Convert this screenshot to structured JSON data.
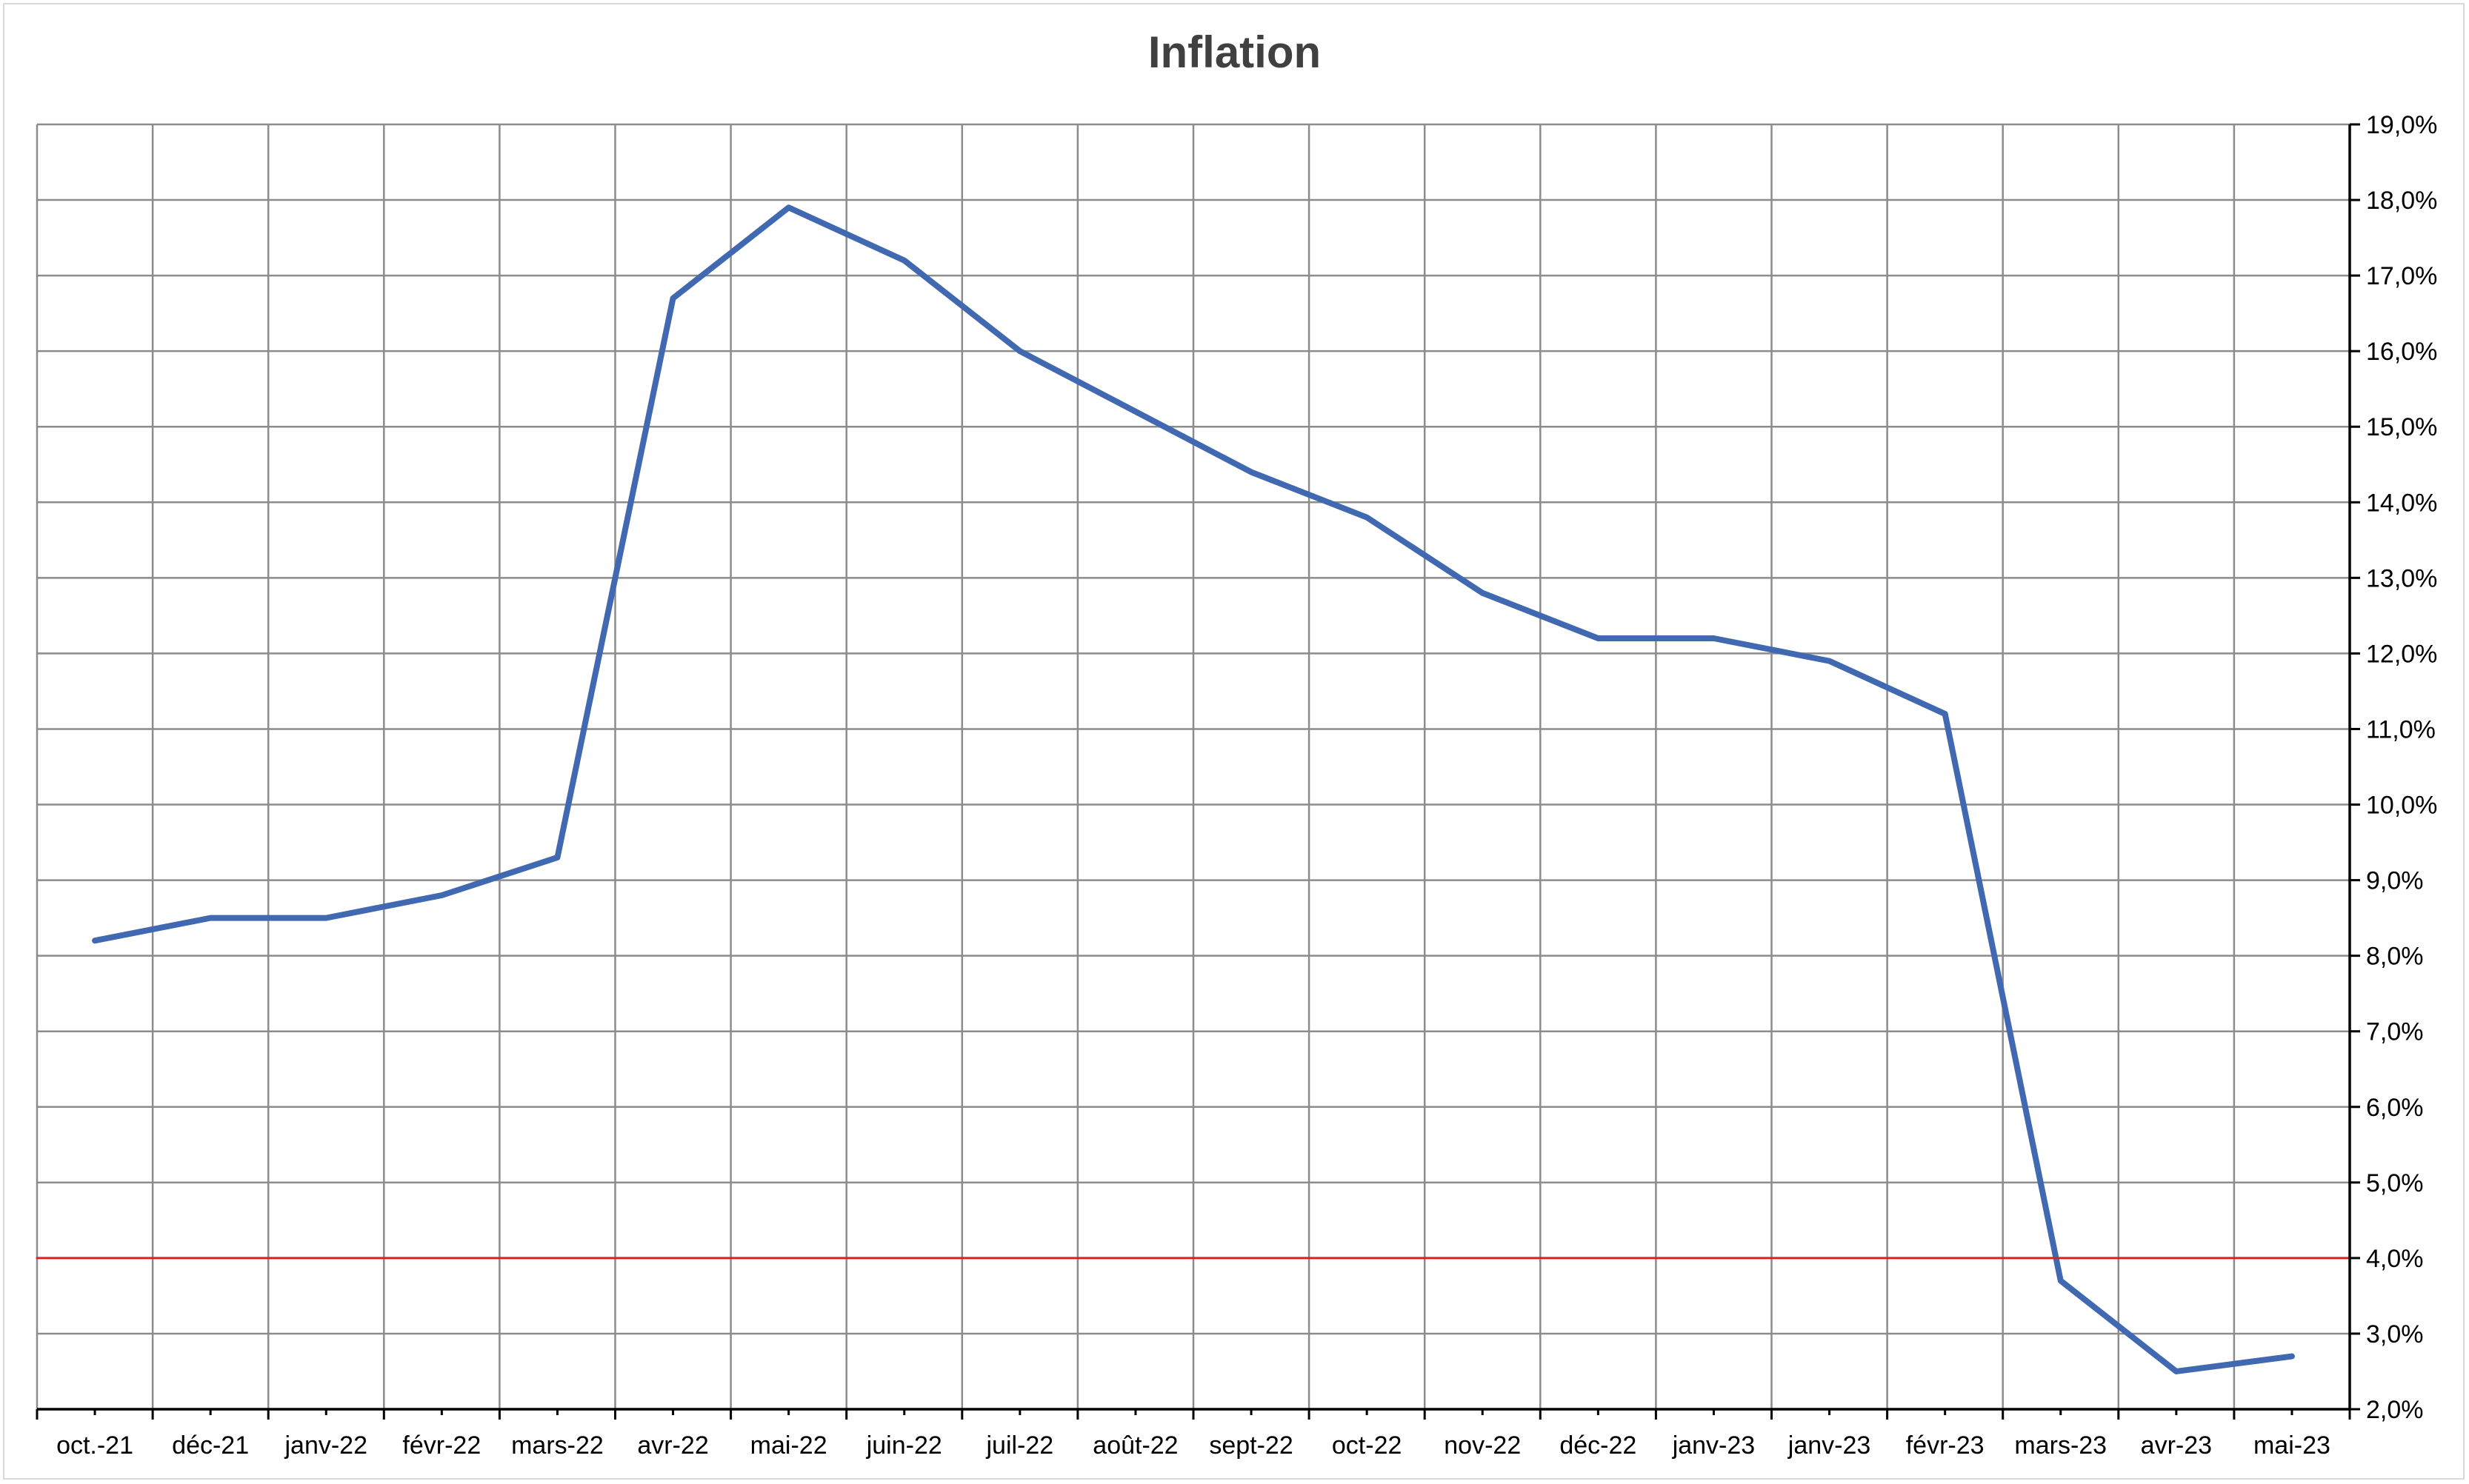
{
  "chart_data": {
    "type": "line",
    "title": "Inflation",
    "xlabel": "",
    "ylabel": "",
    "x_tick_labels": [
      "oct.-21",
      "déc-21",
      "janv-22",
      "févr-22",
      "mars-22",
      "avr-22",
      "mai-22",
      "juin-22",
      "juil-22",
      "août-22",
      "sept-22",
      "oct-22",
      "nov-22",
      "déc-22",
      "janv-23",
      "janv-23",
      "févr-23",
      "mars-23",
      "avr-23",
      "mai-23"
    ],
    "y_tick_labels": [
      "2,0%",
      "3,0%",
      "4,0%",
      "5,0%",
      "6,0%",
      "7,0%",
      "8,0%",
      "9,0%",
      "10,0%",
      "11,0%",
      "12,0%",
      "13,0%",
      "14,0%",
      "15,0%",
      "16,0%",
      "17,0%",
      "18,0%",
      "19,0%"
    ],
    "ylim": [
      2.0,
      19.0
    ],
    "y_axis_position": "right",
    "grid": true,
    "legend": "none",
    "series": [
      {
        "color": "#4169b2",
        "values": [
          8.2,
          8.5,
          8.5,
          8.8,
          9.3,
          16.7,
          17.9,
          17.2,
          16.0,
          15.2,
          14.4,
          13.8,
          12.8,
          12.2,
          12.2,
          11.9,
          11.2,
          3.7,
          2.5,
          2.7
        ]
      },
      {
        "color": "#e02020",
        "values": [
          4.0,
          4.0,
          4.0,
          4.0,
          4.0,
          4.0,
          4.0,
          4.0,
          4.0,
          4.0,
          4.0,
          4.0,
          4.0,
          4.0,
          4.0,
          4.0,
          4.0,
          4.0,
          4.0,
          4.0
        ]
      }
    ]
  }
}
